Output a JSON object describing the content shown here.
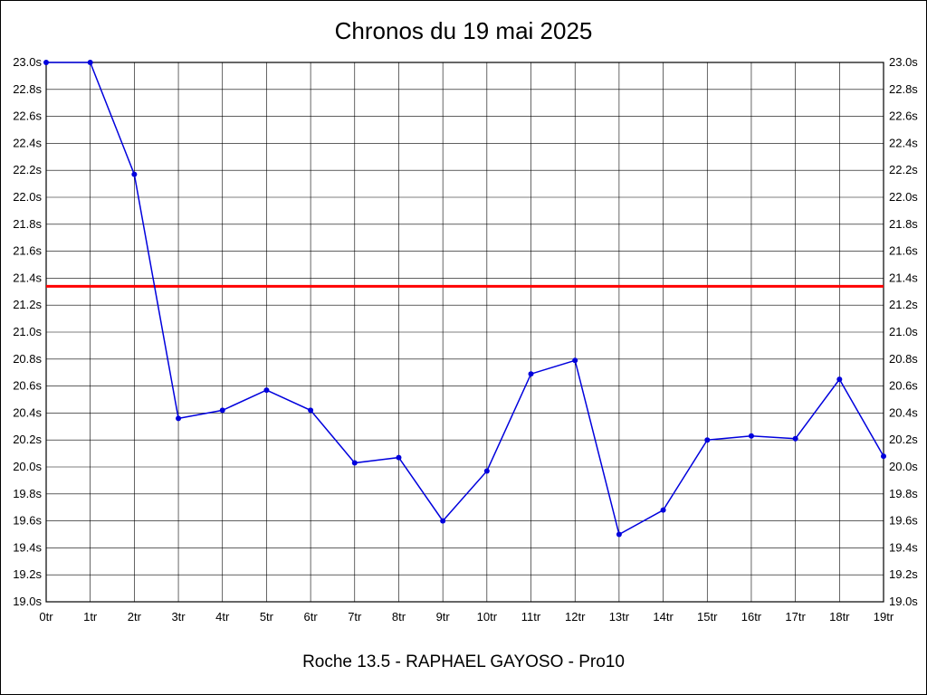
{
  "title": "Chronos du 19 mai 2025",
  "footer": "Roche 13.5 - RAPHAEL GAYOSO - Pro10",
  "chart_data": {
    "type": "line",
    "title": "Chronos du 19 mai 2025",
    "footer": "Roche 13.5 - RAPHAEL GAYOSO - Pro10",
    "x_labels": [
      "0tr",
      "1tr",
      "2tr",
      "3tr",
      "4tr",
      "5tr",
      "6tr",
      "7tr",
      "8tr",
      "9tr",
      "10tr",
      "11tr",
      "12tr",
      "13tr",
      "14tr",
      "15tr",
      "16tr",
      "17tr",
      "18tr",
      "19tr"
    ],
    "values": [
      23.0,
      23.0,
      22.17,
      20.36,
      20.42,
      20.57,
      20.42,
      20.03,
      20.07,
      19.6,
      19.97,
      20.69,
      20.79,
      19.5,
      19.68,
      20.2,
      20.23,
      20.21,
      20.65,
      20.08
    ],
    "reference_line": 21.34,
    "ylim": [
      19.0,
      23.0
    ],
    "ytick_step": 0.2,
    "y_suffix": "s",
    "y_tick_labels": [
      "23.0s",
      "22.8s",
      "22.6s",
      "22.4s",
      "22.2s",
      "22.0s",
      "21.8s",
      "21.6s",
      "21.4s",
      "21.2s",
      "21.0s",
      "20.8s",
      "20.6s",
      "20.4s",
      "20.2s",
      "20.0s",
      "19.8s",
      "19.6s",
      "19.4s",
      "19.2s",
      "19.0s"
    ],
    "grid": true,
    "legend": "none",
    "series_color": "#0000dd",
    "reference_color": "#ff0000",
    "grid_color": "#000000",
    "background_color": "#ffffff"
  }
}
